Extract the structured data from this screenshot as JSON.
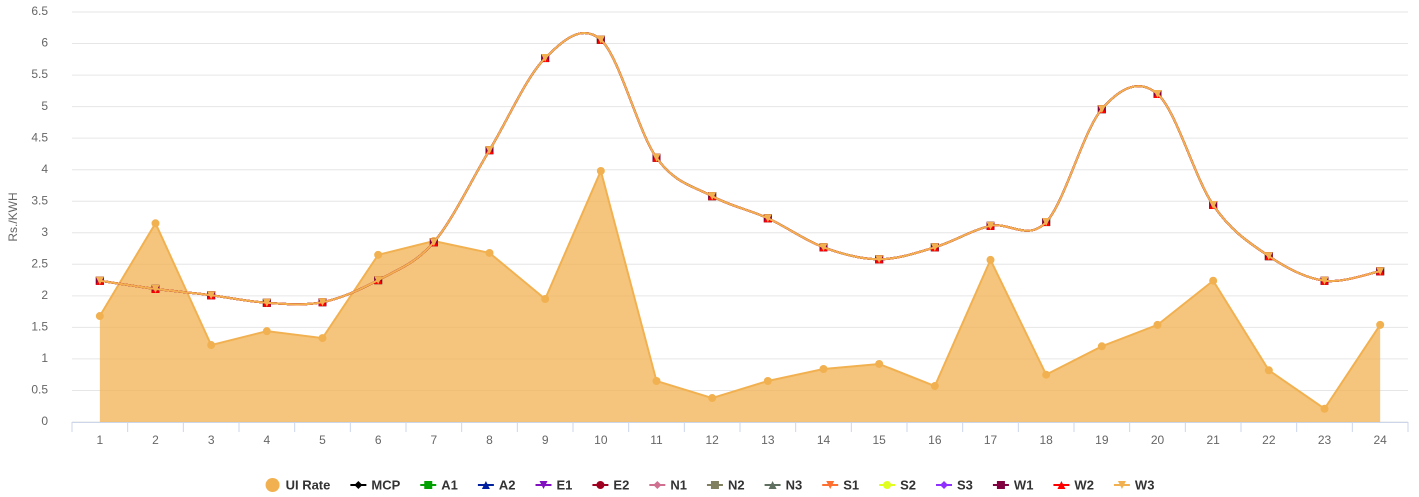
{
  "chart_data": {
    "type": "line",
    "smooth": true,
    "grid": true,
    "y_label": "Rs./KWH",
    "categories": [
      "1",
      "2",
      "3",
      "4",
      "5",
      "6",
      "7",
      "8",
      "9",
      "10",
      "11",
      "12",
      "13",
      "14",
      "15",
      "16",
      "17",
      "18",
      "19",
      "20",
      "21",
      "22",
      "23",
      "24"
    ],
    "ylim": [
      0,
      6.5
    ],
    "yticks": [
      0,
      0.5,
      1,
      1.5,
      2,
      2.5,
      3,
      3.5,
      4,
      4.5,
      5,
      5.5,
      6,
      6.5
    ],
    "legend": "bottom",
    "series": [
      {
        "name": "UI Rate",
        "type": "area",
        "smooth": false,
        "color": "#f2b151",
        "marker": "circle",
        "values": [
          1.68,
          3.15,
          1.22,
          1.44,
          1.33,
          2.65,
          2.87,
          2.68,
          1.95,
          3.98,
          0.65,
          0.38,
          0.65,
          0.84,
          0.92,
          0.57,
          2.57,
          0.75,
          1.2,
          1.54,
          2.24,
          0.82,
          0.21,
          1.54
        ]
      },
      {
        "name": "MCP",
        "color": "#000000",
        "marker": "diamond",
        "values": [
          2.24,
          2.11,
          2.01,
          1.89,
          1.9,
          2.25,
          2.85,
          4.31,
          5.77,
          6.06,
          4.19,
          3.58,
          3.23,
          2.77,
          2.58,
          2.77,
          3.11,
          3.17,
          4.96,
          5.2,
          3.44,
          2.63,
          2.24,
          2.39
        ]
      },
      {
        "name": "A1",
        "color": "#00a000",
        "marker": "square",
        "values": [
          2.24,
          2.11,
          2.01,
          1.89,
          1.9,
          2.25,
          2.85,
          4.31,
          5.77,
          6.06,
          4.19,
          3.58,
          3.23,
          2.77,
          2.58,
          2.77,
          3.11,
          3.17,
          4.96,
          5.2,
          3.44,
          2.63,
          2.24,
          2.39
        ]
      },
      {
        "name": "A2",
        "color": "#0020a0",
        "marker": "triangle",
        "values": [
          2.24,
          2.11,
          2.01,
          1.89,
          1.9,
          2.25,
          2.85,
          4.31,
          5.77,
          6.06,
          4.19,
          3.58,
          3.23,
          2.77,
          2.58,
          2.77,
          3.11,
          3.17,
          4.96,
          5.2,
          3.44,
          2.63,
          2.24,
          2.39
        ]
      },
      {
        "name": "E1",
        "color": "#8010c0",
        "marker": "triangle-down",
        "values": [
          2.24,
          2.11,
          2.01,
          1.89,
          1.9,
          2.25,
          2.85,
          4.31,
          5.77,
          6.06,
          4.19,
          3.58,
          3.23,
          2.77,
          2.58,
          2.77,
          3.11,
          3.17,
          4.96,
          5.2,
          3.44,
          2.63,
          2.24,
          2.39
        ]
      },
      {
        "name": "E2",
        "color": "#a00020",
        "marker": "circle",
        "values": [
          2.24,
          2.11,
          2.01,
          1.89,
          1.9,
          2.25,
          2.85,
          4.31,
          5.77,
          6.06,
          4.19,
          3.58,
          3.23,
          2.77,
          2.58,
          2.77,
          3.11,
          3.17,
          4.96,
          5.2,
          3.44,
          2.63,
          2.24,
          2.39
        ]
      },
      {
        "name": "N1",
        "color": "#d07090",
        "marker": "diamond",
        "values": [
          2.24,
          2.11,
          2.01,
          1.89,
          1.9,
          2.25,
          2.85,
          4.31,
          5.77,
          6.06,
          4.19,
          3.58,
          3.23,
          2.77,
          2.58,
          2.77,
          3.11,
          3.17,
          4.96,
          5.2,
          3.44,
          2.63,
          2.24,
          2.39
        ]
      },
      {
        "name": "N2",
        "color": "#808060",
        "marker": "square",
        "values": [
          2.24,
          2.11,
          2.01,
          1.89,
          1.9,
          2.25,
          2.85,
          4.31,
          5.77,
          6.06,
          4.19,
          3.58,
          3.23,
          2.77,
          2.58,
          2.77,
          3.11,
          3.17,
          4.96,
          5.2,
          3.44,
          2.63,
          2.24,
          2.39
        ]
      },
      {
        "name": "N3",
        "color": "#607060",
        "marker": "triangle",
        "values": [
          2.24,
          2.11,
          2.01,
          1.89,
          1.9,
          2.25,
          2.85,
          4.31,
          5.77,
          6.06,
          4.19,
          3.58,
          3.23,
          2.77,
          2.58,
          2.77,
          3.11,
          3.17,
          4.96,
          5.2,
          3.44,
          2.63,
          2.24,
          2.39
        ]
      },
      {
        "name": "S1",
        "color": "#ff7030",
        "marker": "triangle-down",
        "values": [
          2.24,
          2.11,
          2.01,
          1.89,
          1.9,
          2.25,
          2.85,
          4.31,
          5.77,
          6.06,
          4.19,
          3.58,
          3.23,
          2.77,
          2.58,
          2.77,
          3.11,
          3.17,
          4.96,
          5.2,
          3.44,
          2.63,
          2.24,
          2.39
        ]
      },
      {
        "name": "S2",
        "color": "#e0ff20",
        "marker": "circle",
        "values": [
          2.24,
          2.11,
          2.01,
          1.89,
          1.9,
          2.25,
          2.85,
          4.31,
          5.77,
          6.06,
          4.19,
          3.58,
          3.23,
          2.77,
          2.58,
          2.77,
          3.11,
          3.17,
          4.96,
          5.2,
          3.44,
          2.63,
          2.24,
          2.39
        ]
      },
      {
        "name": "S3",
        "color": "#9030ff",
        "marker": "diamond",
        "values": [
          2.24,
          2.11,
          2.01,
          1.89,
          1.9,
          2.25,
          2.85,
          4.31,
          5.77,
          6.06,
          4.19,
          3.58,
          3.23,
          2.77,
          2.58,
          2.77,
          3.11,
          3.17,
          4.96,
          5.2,
          3.44,
          2.63,
          2.24,
          2.39
        ]
      },
      {
        "name": "W1",
        "color": "#800040",
        "marker": "square",
        "values": [
          2.24,
          2.11,
          2.01,
          1.89,
          1.9,
          2.25,
          2.85,
          4.31,
          5.77,
          6.06,
          4.19,
          3.58,
          3.23,
          2.77,
          2.58,
          2.77,
          3.11,
          3.17,
          4.96,
          5.2,
          3.44,
          2.63,
          2.24,
          2.39
        ]
      },
      {
        "name": "W2",
        "color": "#ff0000",
        "marker": "triangle",
        "values": [
          2.24,
          2.11,
          2.01,
          1.89,
          1.9,
          2.25,
          2.85,
          4.31,
          5.77,
          6.06,
          4.19,
          3.58,
          3.23,
          2.77,
          2.58,
          2.77,
          3.11,
          3.17,
          4.96,
          5.2,
          3.44,
          2.63,
          2.24,
          2.39
        ]
      },
      {
        "name": "W3",
        "color": "#f2b151",
        "marker": "triangle-down",
        "values": [
          2.24,
          2.11,
          2.01,
          1.89,
          1.9,
          2.25,
          2.85,
          4.31,
          5.77,
          6.06,
          4.19,
          3.58,
          3.23,
          2.77,
          2.58,
          2.77,
          3.11,
          3.17,
          4.96,
          5.2,
          3.44,
          2.63,
          2.24,
          2.39
        ]
      }
    ]
  }
}
